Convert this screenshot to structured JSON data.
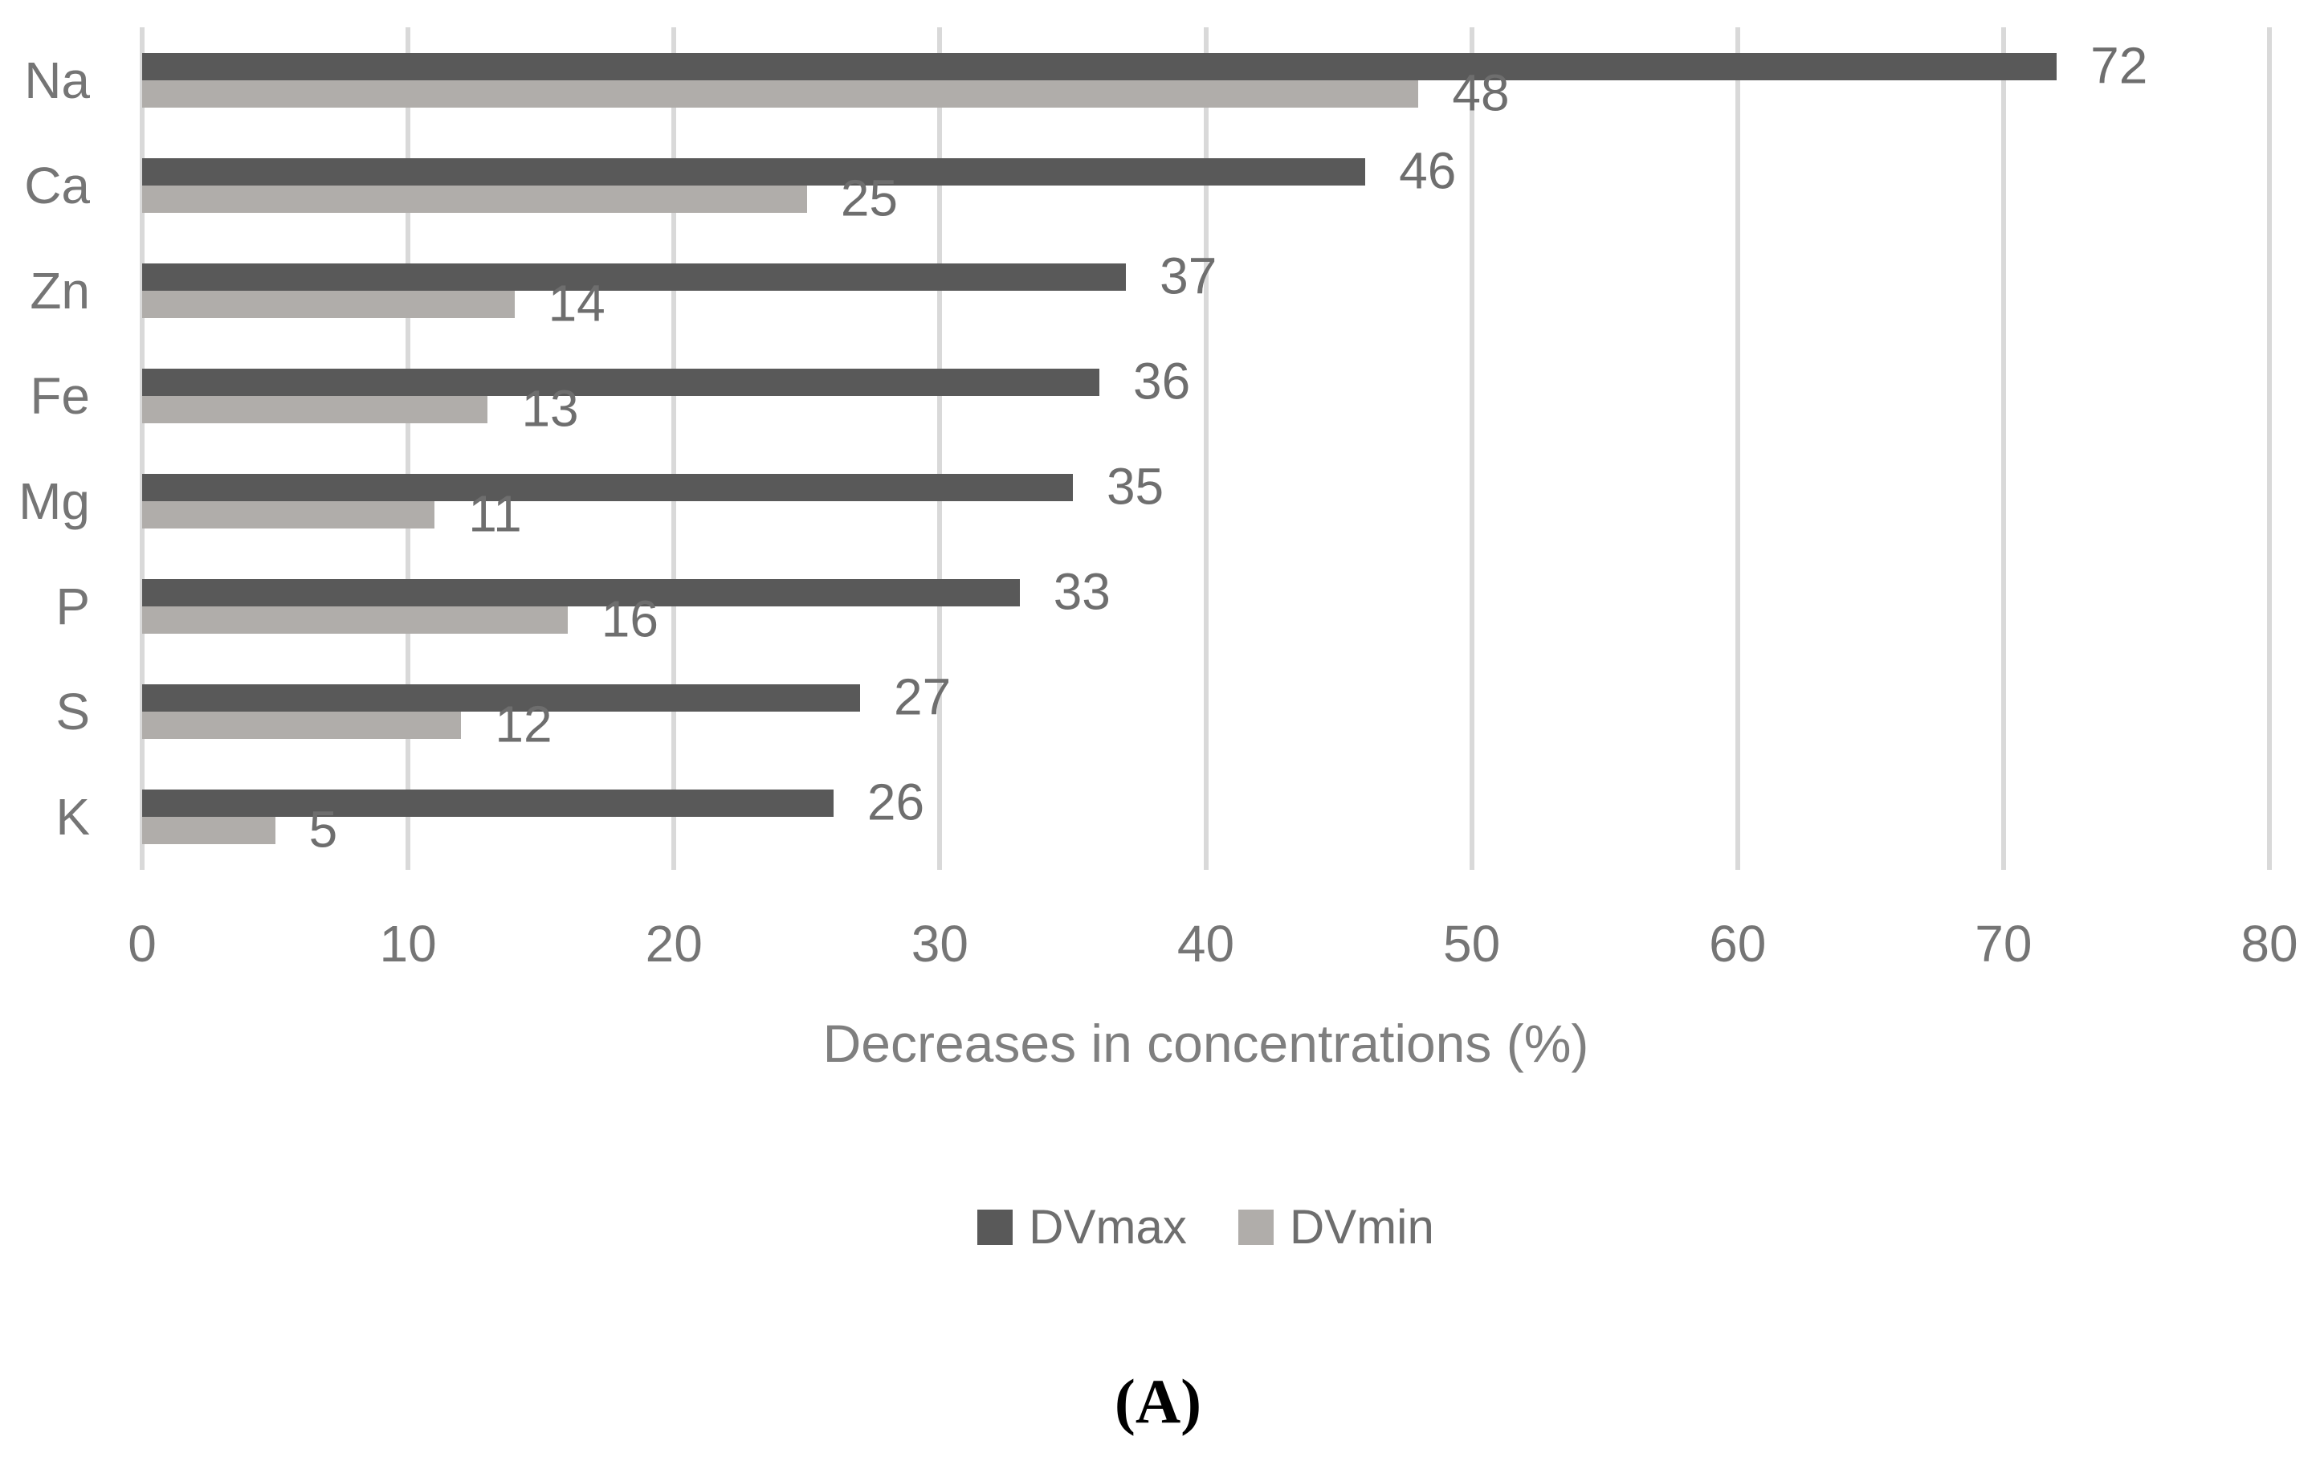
{
  "chart_data": {
    "type": "bar",
    "orientation": "horizontal",
    "title": "",
    "xlabel": "Decreases in concentrations (%)",
    "ylabel": "",
    "xlim": [
      0,
      80
    ],
    "xticks": [
      0,
      10,
      20,
      30,
      40,
      50,
      60,
      70,
      80
    ],
    "grid": "vertical",
    "data_labels": true,
    "legend_position": "bottom",
    "categories": [
      "Na",
      "Ca",
      "Zn",
      "Fe",
      "Mg",
      "P",
      "S",
      "K"
    ],
    "series": [
      {
        "name": "DVmax",
        "color": "#595959",
        "values": [
          72,
          46,
          37,
          36,
          35,
          33,
          27,
          26
        ]
      },
      {
        "name": "DVmin",
        "color": "#B0ADAA",
        "values": [
          48,
          25,
          14,
          13,
          11,
          16,
          12,
          5
        ]
      }
    ]
  },
  "caption": "(A)",
  "colors": {
    "bar_dark": "#595959",
    "bar_light": "#B0ADAA",
    "gridline": "#D9D9D9",
    "axis_text": "#757575",
    "value_label_text": "#6E6E6E",
    "title_text": "#7F7F7F",
    "caption_text": "#000000",
    "background": "#FFFFFF"
  }
}
